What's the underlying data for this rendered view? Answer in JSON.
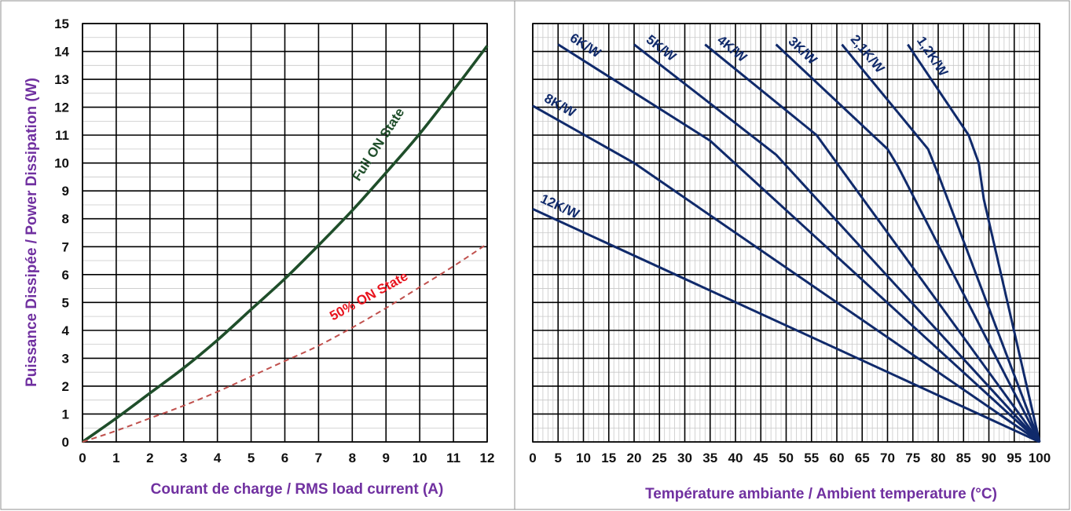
{
  "chart_data": [
    {
      "type": "line",
      "xlabel": "Courant de charge / RMS load current (A)",
      "ylabel": "Puissance Dissipée / Power Dissipation (W)",
      "xlim": [
        0,
        12
      ],
      "ylim": [
        0,
        15
      ],
      "x_ticks": [
        "0",
        "1",
        "2",
        "3",
        "4",
        "5",
        "6",
        "7",
        "8",
        "9",
        "10",
        "11",
        "12"
      ],
      "y_ticks": [
        "0",
        "1",
        "2",
        "3",
        "4",
        "5",
        "6",
        "7",
        "8",
        "9",
        "10",
        "11",
        "12",
        "13",
        "14",
        "15"
      ],
      "grid": true,
      "series": [
        {
          "name": "Full ON State",
          "color": "#1f4e2a",
          "style": "solid",
          "x": [
            0,
            1,
            2,
            3,
            4,
            5,
            6,
            7,
            8,
            9,
            10,
            11,
            12
          ],
          "y": [
            0,
            0.85,
            1.75,
            2.65,
            3.65,
            4.75,
            5.85,
            7.05,
            8.3,
            9.65,
            11.05,
            12.6,
            14.2
          ]
        },
        {
          "name": "50% ON State",
          "color": "#c0504d",
          "style": "dashed",
          "x": [
            0,
            1,
            2,
            3,
            4,
            5,
            6,
            7,
            8,
            9,
            10,
            11,
            12
          ],
          "y": [
            0,
            0.4,
            0.85,
            1.3,
            1.8,
            2.35,
            2.9,
            3.45,
            4.1,
            4.8,
            5.55,
            6.3,
            7.1
          ]
        }
      ]
    },
    {
      "type": "line",
      "xlabel": "Température ambiante / Ambient temperature (°C)",
      "ylabel": "",
      "xlim": [
        0,
        100
      ],
      "ylim": [
        0,
        15
      ],
      "x_ticks": [
        "0",
        "5",
        "10",
        "15",
        "20",
        "25",
        "30",
        "35",
        "40",
        "45",
        "50",
        "55",
        "60",
        "65",
        "70",
        "75",
        "80",
        "85",
        "90",
        "95",
        "100"
      ],
      "grid": true,
      "series": [
        {
          "name": "12K/W",
          "color": "#102a6b",
          "x": [
            0,
            100
          ],
          "y": [
            8.35,
            0
          ]
        },
        {
          "name": "8K/W",
          "color": "#102a6b",
          "x": [
            0,
            20,
            100
          ],
          "y": [
            12.05,
            10.0,
            0
          ]
        },
        {
          "name": "6K/W",
          "color": "#102a6b",
          "x": [
            5,
            35,
            100
          ],
          "y": [
            14.25,
            10.8,
            0
          ]
        },
        {
          "name": "5K/W",
          "color": "#102a6b",
          "x": [
            20,
            48,
            100
          ],
          "y": [
            14.25,
            10.3,
            0
          ]
        },
        {
          "name": "4K/W",
          "color": "#102a6b",
          "x": [
            34,
            56,
            100
          ],
          "y": [
            14.25,
            11.0,
            0
          ]
        },
        {
          "name": "3K/W",
          "color": "#102a6b",
          "x": [
            48,
            70,
            72,
            100
          ],
          "y": [
            14.25,
            10.5,
            9.9,
            0
          ]
        },
        {
          "name": "2,1K/W",
          "color": "#102a6b",
          "x": [
            61,
            78,
            80,
            100
          ],
          "y": [
            14.25,
            10.5,
            9.6,
            0
          ]
        },
        {
          "name": "1,2K/W",
          "color": "#102a6b",
          "x": [
            74,
            86,
            88,
            89,
            100
          ],
          "y": [
            14.25,
            11.0,
            10.0,
            8.7,
            0
          ]
        }
      ]
    }
  ]
}
